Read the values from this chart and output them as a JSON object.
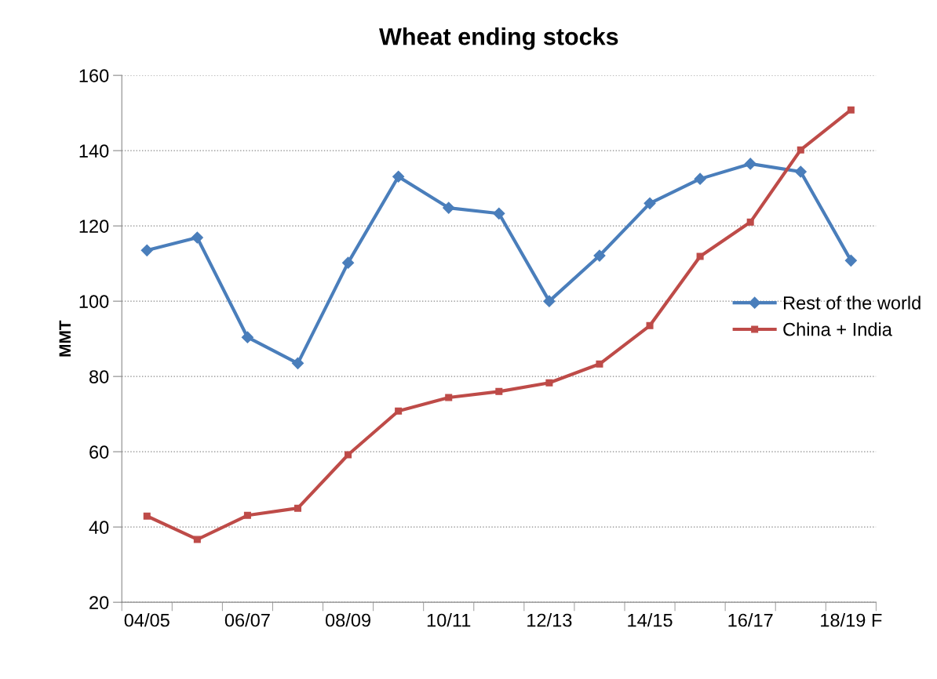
{
  "chart_data": {
    "type": "line",
    "title": "Wheat ending stocks",
    "ylabel": "MMT",
    "categories": [
      "04/05",
      null,
      "06/07",
      null,
      "08/09",
      null,
      "10/11",
      null,
      "12/13",
      null,
      "14/15",
      null,
      "16/17",
      null,
      "18/19 F"
    ],
    "series": [
      {
        "name": "Rest of the world",
        "color": "#4a7ebb",
        "marker": "diamond",
        "values": [
          113.5,
          116.9,
          90.4,
          83.5,
          110.2,
          133.1,
          124.8,
          123.3,
          100,
          112.1,
          126,
          132.5,
          136.5,
          134.4,
          110.8
        ]
      },
      {
        "name": "China + India",
        "color": "#be4b48",
        "marker": "square",
        "values": [
          42.9,
          36.7,
          43.1,
          45,
          59.2,
          70.8,
          74.4,
          76,
          78.3,
          83.3,
          93.5,
          111.9,
          121,
          140.2,
          150.8
        ]
      }
    ],
    "ylim": [
      20,
      160
    ],
    "yticks": [
      20,
      40,
      60,
      80,
      100,
      120,
      140,
      160
    ],
    "grid": "y",
    "legend": "right",
    "line_style": "solid"
  }
}
